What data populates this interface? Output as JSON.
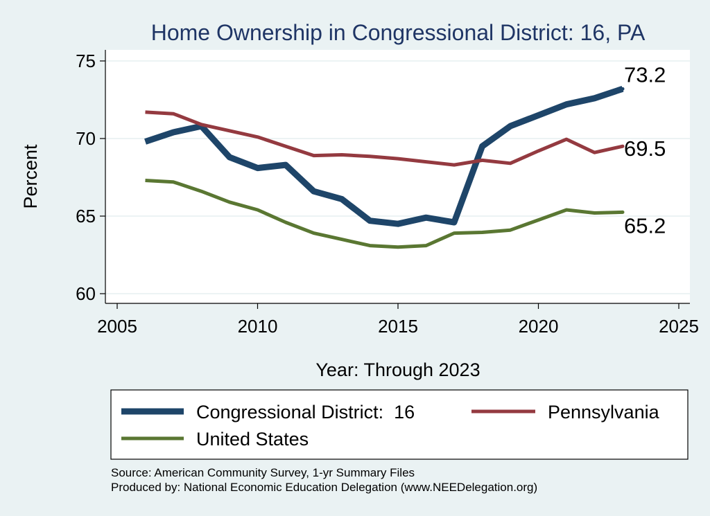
{
  "chart_data": {
    "type": "line",
    "title": "Home Ownership in Congressional District:  16, PA",
    "xlabel": "Year: Through 2023",
    "ylabel": "Percent",
    "xlim": [
      2005,
      2025
    ],
    "ylim": [
      60,
      75
    ],
    "x_ticks": [
      "2005",
      "2010",
      "2015",
      "2020",
      "2025"
    ],
    "y_ticks": [
      "60",
      "65",
      "70",
      "75"
    ],
    "grid": true,
    "legend_position": "bottom",
    "series": [
      {
        "name": "Congressional District:  16",
        "color": "#1e4569",
        "x": [
          2006,
          2007,
          2008,
          2009,
          2010,
          2011,
          2012,
          2013,
          2014,
          2015,
          2016,
          2017,
          2018,
          2019,
          2020,
          2021,
          2022,
          2023
        ],
        "values": [
          69.8,
          70.4,
          70.8,
          68.8,
          68.1,
          68.3,
          66.6,
          66.1,
          64.7,
          64.5,
          64.9,
          64.6,
          69.5,
          70.8,
          71.5,
          72.2,
          72.6,
          73.2
        ],
        "end_label": "73.2"
      },
      {
        "name": "Pennsylvania",
        "color": "#943a40",
        "x": [
          2006,
          2007,
          2008,
          2009,
          2010,
          2011,
          2012,
          2013,
          2014,
          2015,
          2016,
          2017,
          2018,
          2019,
          2020,
          2021,
          2022,
          2023
        ],
        "values": [
          71.7,
          71.6,
          70.9,
          70.5,
          70.1,
          69.5,
          68.9,
          68.95,
          68.85,
          68.7,
          68.5,
          68.3,
          68.6,
          68.4,
          69.2,
          69.95,
          69.1,
          69.5
        ],
        "end_label": "69.5"
      },
      {
        "name": "United States",
        "color": "#5a7732",
        "x": [
          2006,
          2007,
          2008,
          2009,
          2010,
          2011,
          2012,
          2013,
          2014,
          2015,
          2016,
          2017,
          2018,
          2019,
          2020,
          2021,
          2022,
          2023
        ],
        "values": [
          67.3,
          67.2,
          66.6,
          65.9,
          65.4,
          64.6,
          63.9,
          63.5,
          63.1,
          63.0,
          63.1,
          63.9,
          63.95,
          64.1,
          64.75,
          65.4,
          65.2,
          65.25
        ],
        "end_label": "65.2"
      }
    ],
    "source_note": "Source: American Community Survey, 1-yr Summary Files",
    "produced_note": "Produced by: National Economic Education Delegation (www.NEEDelegation.org)"
  }
}
